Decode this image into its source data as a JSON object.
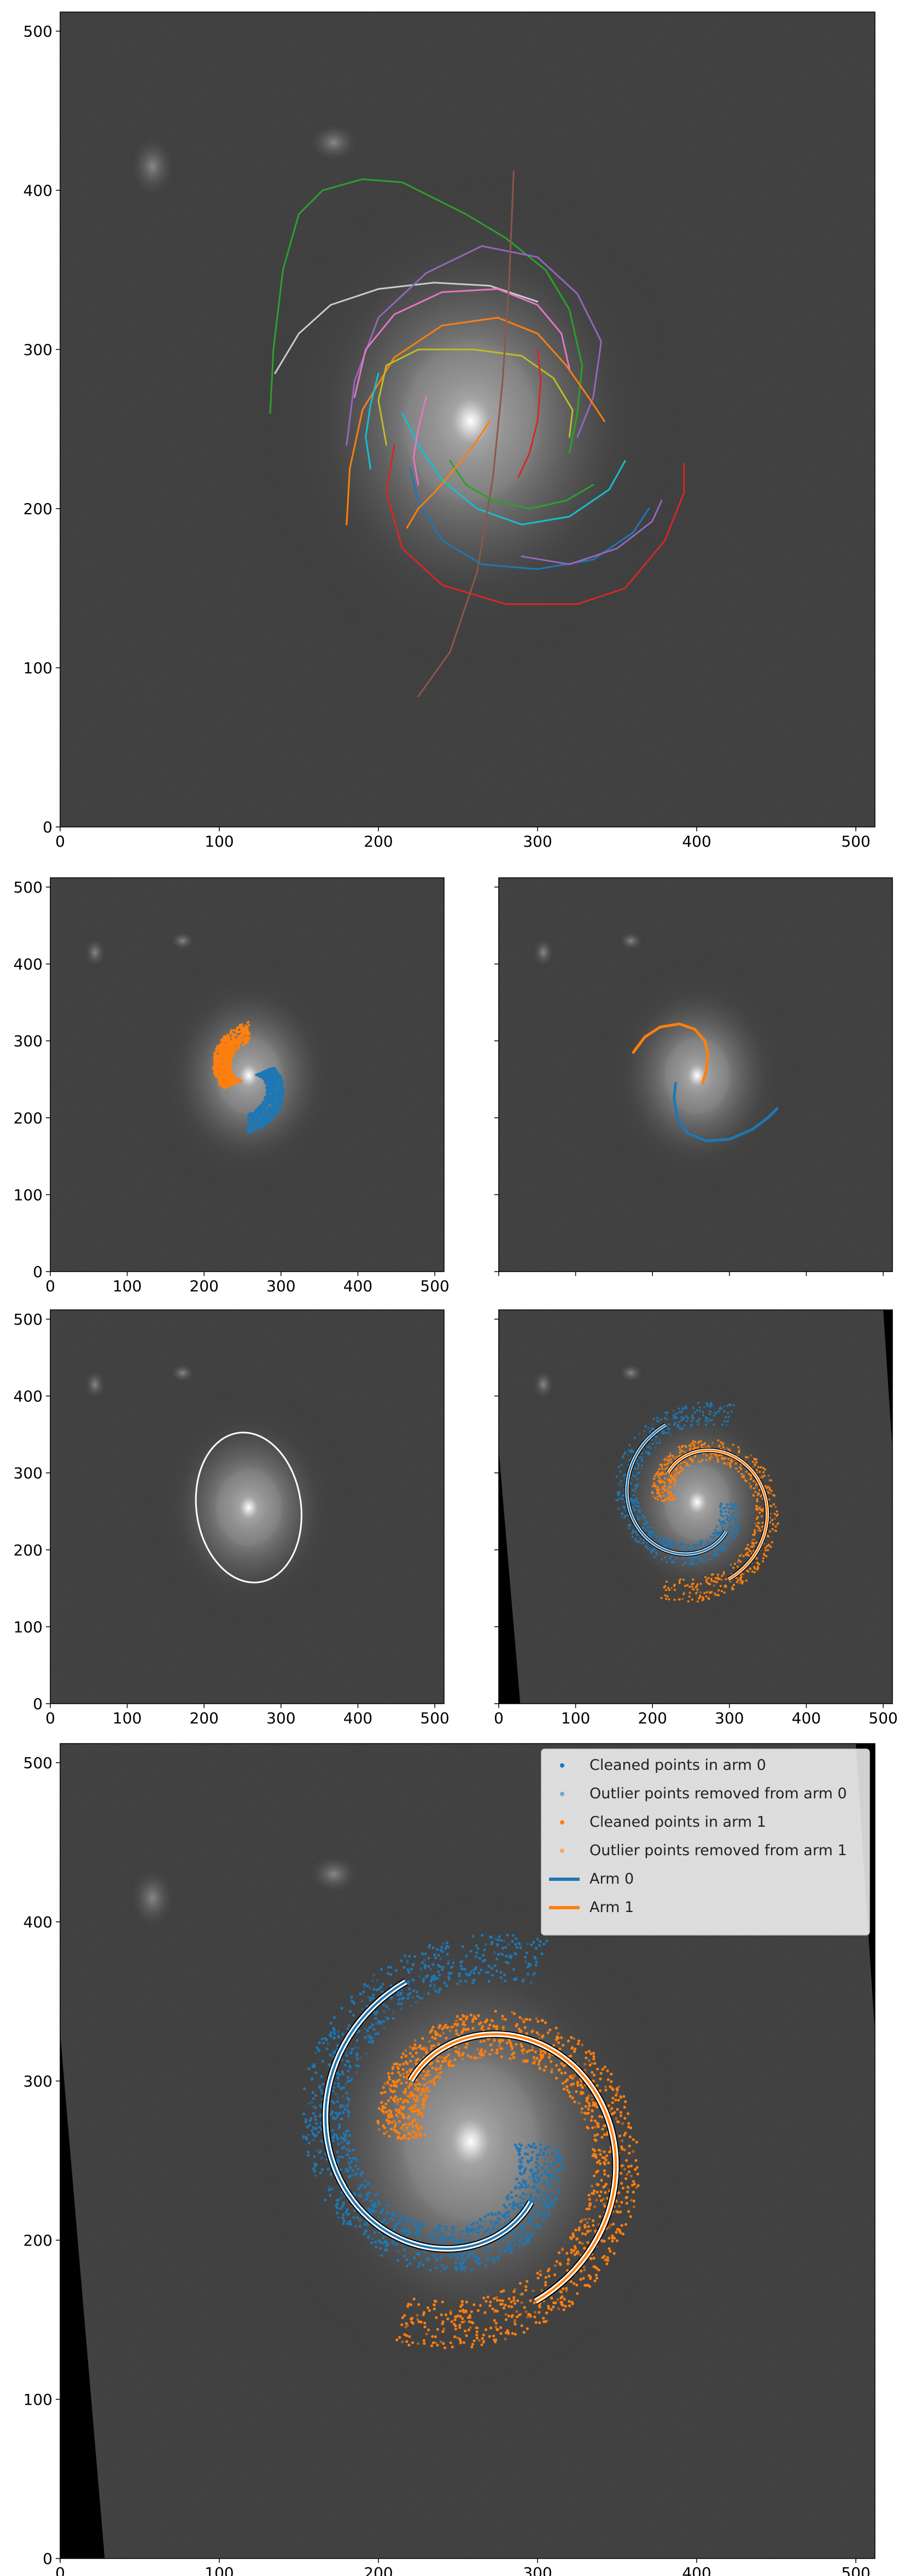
{
  "figure": {
    "description_free": true
  },
  "colors": {
    "blue": "#1f77b4",
    "orange": "#ff7f0e",
    "green": "#2ca02c",
    "red": "#d62728",
    "purple": "#9467bd",
    "brown": "#8c564b",
    "pink": "#e377c2",
    "gray": "#cccccc",
    "olive": "#bcbd22",
    "cyan": "#17becf",
    "white": "#ffffff"
  },
  "chart_data": [
    {
      "id": "p1",
      "type": "line",
      "xlim": [
        0,
        512
      ],
      "ylim": [
        0,
        512
      ],
      "xticks": [
        "0",
        "100",
        "200",
        "300",
        "400",
        "500"
      ],
      "yticks": [
        "0",
        "100",
        "200",
        "300",
        "400",
        "500"
      ],
      "series": [
        {
          "color": "green",
          "points": [
            [
              132,
              260
            ],
            [
              134,
              300
            ],
            [
              140,
              350
            ],
            [
              150,
              385
            ],
            [
              165,
              400
            ],
            [
              190,
              407
            ],
            [
              215,
              405
            ],
            [
              235,
              395
            ],
            [
              255,
              385
            ],
            [
              280,
              370
            ],
            [
              305,
              350
            ],
            [
              320,
              325
            ],
            [
              328,
              290
            ],
            [
              325,
              260
            ],
            [
              320,
              235
            ]
          ]
        },
        {
          "color": "gray",
          "points": [
            [
              135,
              285
            ],
            [
              150,
              310
            ],
            [
              170,
              328
            ],
            [
              200,
              338
            ],
            [
              235,
              342
            ],
            [
              270,
              340
            ],
            [
              300,
              330
            ]
          ]
        },
        {
          "color": "purple",
          "points": [
            [
              180,
              240
            ],
            [
              185,
              280
            ],
            [
              200,
              320
            ],
            [
              230,
              348
            ],
            [
              265,
              365
            ],
            [
              300,
              358
            ],
            [
              325,
              335
            ],
            [
              340,
              305
            ],
            [
              335,
              270
            ],
            [
              325,
              245
            ]
          ]
        },
        {
          "color": "red",
          "points": [
            [
              210,
              240
            ],
            [
              205,
              210
            ],
            [
              215,
              175
            ],
            [
              240,
              152
            ],
            [
              280,
              140
            ],
            [
              325,
              140
            ],
            [
              355,
              150
            ],
            [
              380,
              180
            ],
            [
              392,
              210
            ],
            [
              392,
              228
            ]
          ]
        },
        {
          "color": "orange",
          "points": [
            [
              180,
              190
            ],
            [
              182,
              225
            ],
            [
              190,
              262
            ],
            [
              210,
              295
            ],
            [
              240,
              315
            ],
            [
              275,
              320
            ],
            [
              300,
              310
            ],
            [
              318,
              290
            ],
            [
              332,
              270
            ],
            [
              342,
              255
            ]
          ]
        },
        {
          "color": "olive",
          "points": [
            [
              205,
              240
            ],
            [
              200,
              268
            ],
            [
              205,
              290
            ],
            [
              225,
              300
            ],
            [
              260,
              300
            ],
            [
              290,
              296
            ],
            [
              310,
              282
            ],
            [
              322,
              262
            ],
            [
              320,
              245
            ]
          ]
        },
        {
          "color": "pink",
          "points": [
            [
              185,
              270
            ],
            [
              192,
              300
            ],
            [
              210,
              322
            ],
            [
              240,
              336
            ],
            [
              275,
              338
            ],
            [
              300,
              328
            ],
            [
              315,
              310
            ],
            [
              320,
              288
            ]
          ]
        },
        {
          "color": "cyan",
          "points": [
            [
              215,
              260
            ],
            [
              225,
              240
            ],
            [
              240,
              218
            ],
            [
              262,
              200
            ],
            [
              290,
              190
            ],
            [
              320,
              195
            ],
            [
              345,
              212
            ],
            [
              355,
              230
            ]
          ]
        },
        {
          "color": "brown",
          "points": [
            [
              285,
              412
            ],
            [
              282,
              340
            ],
            [
              278,
              280
            ],
            [
              272,
              220
            ],
            [
              262,
              160
            ],
            [
              245,
              110
            ],
            [
              225,
              82
            ]
          ]
        },
        {
          "color": "blue",
          "points": [
            [
              220,
              225
            ],
            [
              225,
              205
            ],
            [
              240,
              180
            ],
            [
              265,
              165
            ],
            [
              300,
              162
            ],
            [
              335,
              168
            ],
            [
              360,
              185
            ],
            [
              370,
              200
            ]
          ]
        },
        {
          "color": "green",
          "points": [
            [
              245,
              230
            ],
            [
              255,
              215
            ],
            [
              272,
              205
            ],
            [
              295,
              200
            ],
            [
              318,
              205
            ],
            [
              335,
              215
            ]
          ]
        },
        {
          "color": "purple",
          "points": [
            [
              290,
              170
            ],
            [
              320,
              165
            ],
            [
              350,
              175
            ],
            [
              372,
              192
            ],
            [
              378,
              205
            ]
          ]
        },
        {
          "color": "orange",
          "points": [
            [
              270,
              255
            ],
            [
              260,
              240
            ],
            [
              248,
              225
            ],
            [
              235,
              210
            ],
            [
              225,
              200
            ],
            [
              218,
              188
            ]
          ]
        },
        {
          "color": "red",
          "points": [
            [
              300,
              300
            ],
            [
              302,
              280
            ],
            [
              300,
              255
            ],
            [
              295,
              235
            ],
            [
              288,
              220
            ]
          ]
        },
        {
          "color": "cyan",
          "points": [
            [
              200,
              285
            ],
            [
              195,
              265
            ],
            [
              192,
              245
            ],
            [
              195,
              225
            ]
          ]
        },
        {
          "color": "pink",
          "points": [
            [
              230,
              270
            ],
            [
              225,
              250
            ],
            [
              222,
              232
            ],
            [
              225,
              215
            ]
          ]
        }
      ]
    },
    {
      "id": "p2",
      "type": "scatter",
      "xlim": [
        0,
        512
      ],
      "ylim": [
        0,
        512
      ],
      "xticks": [
        "0",
        "100",
        "200",
        "300",
        "400",
        "500"
      ],
      "yticks": [
        "0",
        "100",
        "200",
        "300",
        "400",
        "500"
      ],
      "series": [
        {
          "color": "orange",
          "center": [
            258,
            252
          ],
          "theta_start": 1.55,
          "theta_end": 3.55,
          "r_start": 60,
          "r_end": 22
        },
        {
          "color": "blue",
          "center": [
            258,
            252
          ],
          "theta_start": 4.69,
          "theta_end": 6.69,
          "r_start": 60,
          "r_end": 22
        }
      ]
    },
    {
      "id": "p3",
      "type": "line",
      "xlim": [
        0,
        512
      ],
      "ylim": [
        0,
        512
      ],
      "xticks": [],
      "yticks": [],
      "series": [
        {
          "color": "orange",
          "points": [
            [
              175,
              285
            ],
            [
              190,
              305
            ],
            [
              210,
              318
            ],
            [
              235,
              322
            ],
            [
              255,
              315
            ],
            [
              268,
              300
            ],
            [
              272,
              282
            ],
            [
              270,
              262
            ],
            [
              265,
              245
            ]
          ]
        },
        {
          "color": "blue",
          "points": [
            [
              230,
              245
            ],
            [
              228,
              225
            ],
            [
              232,
              200
            ],
            [
              245,
              180
            ],
            [
              270,
              170
            ],
            [
              300,
              172
            ],
            [
              330,
              185
            ],
            [
              350,
              200
            ],
            [
              362,
              212
            ]
          ]
        }
      ]
    },
    {
      "id": "p4",
      "type": "scatter",
      "xlim": [
        0,
        512
      ],
      "ylim": [
        0,
        512
      ],
      "xticks": [
        "0",
        "100",
        "200",
        "300",
        "400",
        "500"
      ],
      "yticks": [
        "0",
        "100",
        "200",
        "300",
        "400",
        "500"
      ],
      "ellipse": {
        "cx": 258,
        "cy": 255,
        "rx": 68,
        "ry": 98,
        "angle": 8
      }
    },
    {
      "id": "p5",
      "type": "scatter",
      "xlim": [
        0,
        512
      ],
      "ylim": [
        0,
        512
      ],
      "xticks": [
        "0",
        "100",
        "200",
        "300",
        "400",
        "500"
      ],
      "yticks": [],
      "center": [
        258,
        262
      ]
    },
    {
      "id": "p6",
      "type": "scatter",
      "xlim": [
        0,
        512
      ],
      "ylim": [
        0,
        512
      ],
      "xticks": [
        "0",
        "100",
        "200",
        "300",
        "400",
        "500"
      ],
      "yticks": [
        "0",
        "100",
        "200",
        "300",
        "400",
        "500"
      ],
      "center": [
        258,
        262
      ],
      "legend": {
        "location": "top-right",
        "entries": [
          {
            "kind": "dot",
            "color": "blue",
            "label": "Cleaned points in arm 0"
          },
          {
            "kind": "dot",
            "color": "blue",
            "label": "Outlier points removed from arm 0"
          },
          {
            "kind": "dot",
            "color": "orange",
            "label": "Cleaned points in arm 1"
          },
          {
            "kind": "dot",
            "color": "orange",
            "label": "Outlier points removed from arm 1"
          },
          {
            "kind": "line",
            "color": "blue",
            "label": "Arm 0"
          },
          {
            "kind": "line",
            "color": "orange",
            "label": "Arm 1"
          }
        ]
      },
      "arms": [
        {
          "color": "blue",
          "theta_start": 1.2,
          "theta_end": 6.25,
          "r_start": 120,
          "r_end": 42
        },
        {
          "color": "orange",
          "theta_start": 4.34,
          "theta_end": 9.39,
          "r_start": 120,
          "r_end": 42
        }
      ]
    }
  ]
}
